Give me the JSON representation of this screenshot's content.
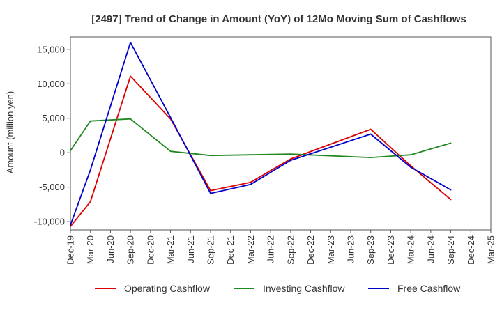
{
  "chart_data": {
    "type": "line",
    "title": "[2497]  Trend of Change in Amount (YoY) of 12Mo Moving Sum of Cashflows",
    "xlabel": "",
    "ylabel": "Amount (million yen)",
    "categories": [
      "Dec-19",
      "Mar-20",
      "Jun-20",
      "Sep-20",
      "Dec-20",
      "Mar-21",
      "Jun-21",
      "Sep-21",
      "Dec-21",
      "Mar-22",
      "Jun-22",
      "Sep-22",
      "Dec-22",
      "Mar-23",
      "Jun-23",
      "Sep-23",
      "Dec-23",
      "Mar-24",
      "Jun-24",
      "Sep-24",
      "Dec-24",
      "Mar-25"
    ],
    "ylim": [
      -11200,
      16800
    ],
    "yticks": [
      -10000,
      -5000,
      0,
      5000,
      10000,
      15000
    ],
    "ytick_labels": [
      "-10,000",
      "-5,000",
      "0",
      "5,000",
      "10,000",
      "15,000"
    ],
    "grid": true,
    "legend_position": "bottom",
    "series": [
      {
        "name": "Operating Cashflow",
        "color": "#dd0000",
        "values": [
          -10700,
          -7100,
          null,
          11100,
          null,
          4900,
          null,
          -5500,
          null,
          -4300,
          null,
          -900,
          null,
          null,
          null,
          3400,
          null,
          -1900,
          null,
          -6800,
          null,
          null
        ]
      },
      {
        "name": "Investing Cashflow",
        "color": "#228822",
        "values": [
          300,
          4600,
          null,
          4900,
          null,
          200,
          null,
          -400,
          null,
          -300,
          null,
          -200,
          null,
          null,
          null,
          -700,
          null,
          -300,
          null,
          1400,
          null,
          null
        ]
      },
      {
        "name": "Free Cashflow",
        "color": "#0000cc",
        "values": [
          -10500,
          -2500,
          null,
          16000,
          null,
          5100,
          null,
          -5900,
          null,
          -4600,
          null,
          -1100,
          null,
          null,
          null,
          2700,
          null,
          -2100,
          null,
          -5400,
          null,
          null
        ]
      }
    ]
  }
}
